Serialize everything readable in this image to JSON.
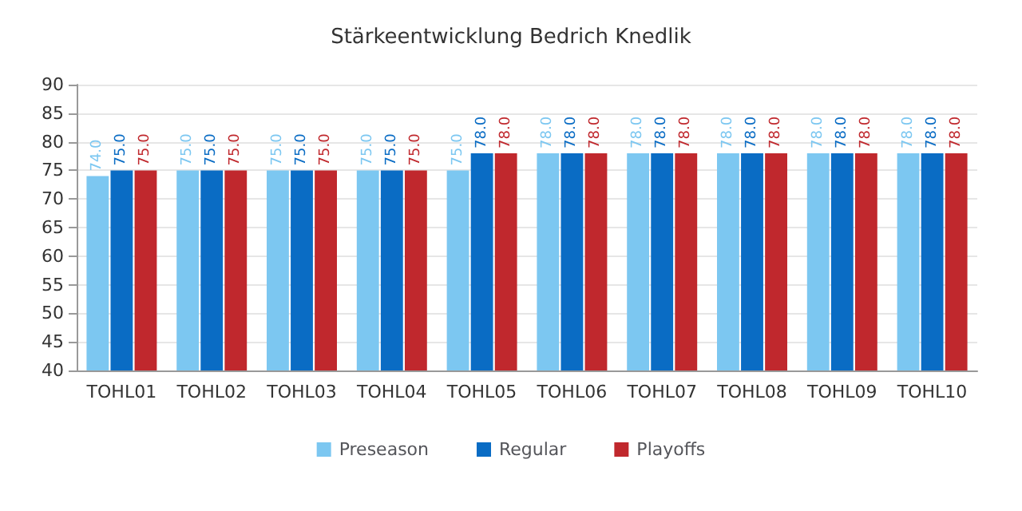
{
  "chart_data": {
    "type": "bar",
    "title": "Stärkeentwicklung Bedrich Knedlik",
    "categories": [
      "TOHL01",
      "TOHL02",
      "TOHL03",
      "TOHL04",
      "TOHL05",
      "TOHL06",
      "TOHL07",
      "TOHL08",
      "TOHL09",
      "TOHL10"
    ],
    "series": [
      {
        "name": "Preseason",
        "color": "#7cc7f1",
        "values": [
          74,
          75,
          75,
          75,
          75,
          78,
          78,
          78,
          78,
          78
        ],
        "value_labels": [
          "74.0",
          "75.0",
          "75.0",
          "75.0",
          "75.0",
          "78.0",
          "78.0",
          "78.0",
          "78.0",
          "78.0"
        ]
      },
      {
        "name": "Regular",
        "color": "#0a6cc4",
        "values": [
          75,
          75,
          75,
          75,
          78,
          78,
          78,
          78,
          78,
          78
        ],
        "value_labels": [
          "75.0",
          "75.0",
          "75.0",
          "75.0",
          "78.0",
          "78.0",
          "78.0",
          "78.0",
          "78.0",
          "78.0"
        ]
      },
      {
        "name": "Playoffs",
        "color": "#c0282d",
        "values": [
          75,
          75,
          75,
          75,
          78,
          78,
          78,
          78,
          78,
          78
        ],
        "value_labels": [
          "75.0",
          "75.0",
          "75.0",
          "75.0",
          "78.0",
          "78.0",
          "78.0",
          "78.0",
          "78.0",
          "78.0"
        ]
      }
    ],
    "ylim": [
      40,
      90
    ],
    "yticks": [
      40,
      45,
      50,
      55,
      60,
      65,
      70,
      75,
      80,
      85,
      90
    ],
    "grid": "y",
    "legend": "bottom"
  }
}
